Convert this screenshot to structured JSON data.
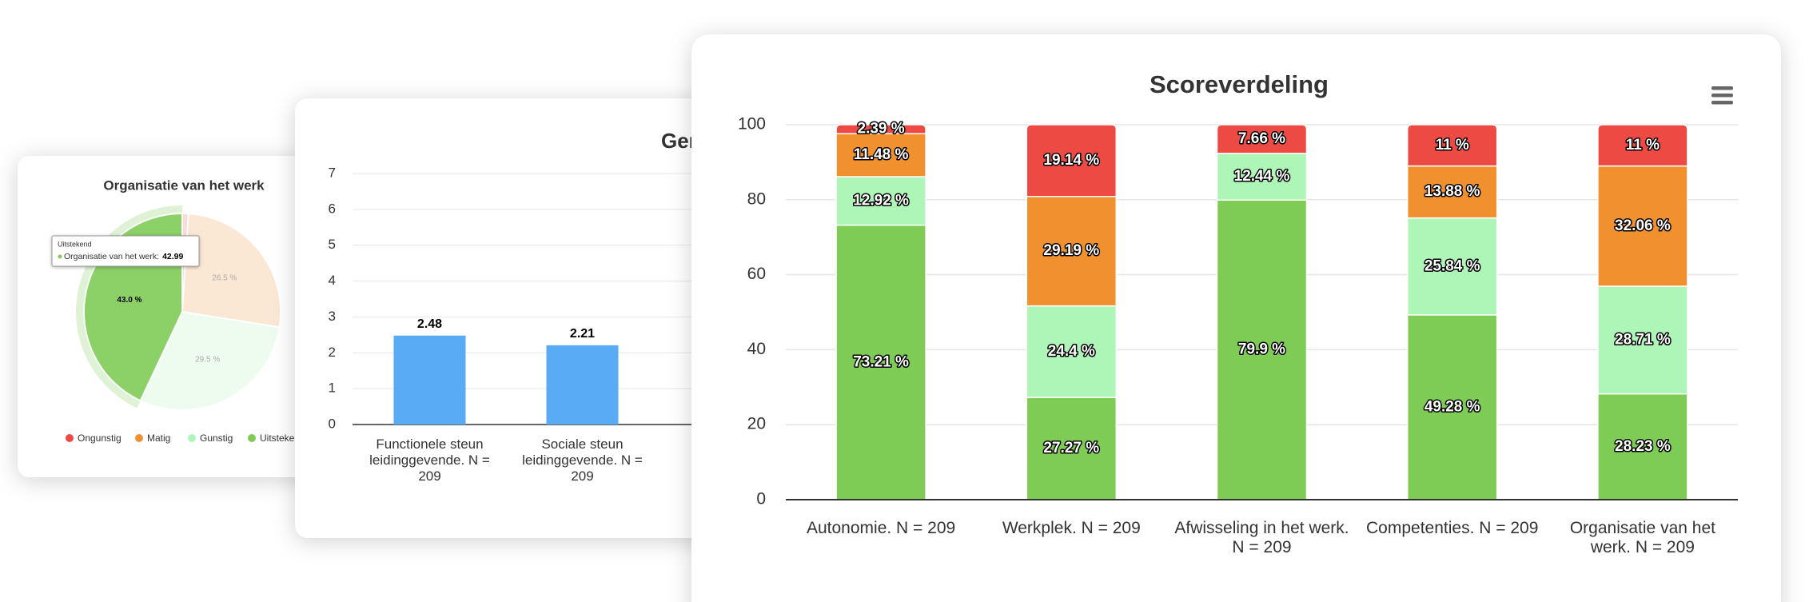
{
  "chart_data": [
    {
      "type": "pie",
      "title": "Organisatie van het werk",
      "categories": [
        "Ongunstig",
        "Matig",
        "Gunstig",
        "Uitstekend"
      ],
      "values": [
        1,
        26.5,
        29.5,
        43.0
      ],
      "value_labels": [
        null,
        "26.5 %",
        "29.5 %",
        "43.0 %"
      ],
      "colors": [
        "#ec4a43",
        "#f0902f",
        "#aef5b8",
        "#7ecb56"
      ],
      "tooltip_title": "Uitstekend",
      "tooltip_label": "Organisatie van het werk:",
      "tooltip_value": 42.99,
      "legend": "bottom"
    },
    {
      "type": "bar",
      "title": "Gem",
      "categories": [
        "Functionele steun leidinggevende. N = 209",
        "Sociale steun leidinggevende. N = 209"
      ],
      "values": [
        2.48,
        2.21
      ],
      "color": "#5aabf5",
      "ylim": [
        0,
        7
      ],
      "yticks": [
        0,
        1,
        2,
        3,
        4,
        5,
        6,
        7
      ],
      "grid": true
    },
    {
      "type": "stacked_bar",
      "title": "Scoreverdeling",
      "categories": [
        "Autonomie. N = 209",
        "Werkplek. N = 209",
        "Afwisseling in het werk. N = 209",
        "Competenties. N = 209",
        "Organisatie van het werk. N = 209"
      ],
      "series": [
        {
          "color": "#7ecb56",
          "values": [
            73.21,
            27.27,
            79.9,
            49.28,
            28.23
          ],
          "value_labels": [
            "73.21 %",
            "27.27 %",
            "79.9 %",
            "49.28 %",
            "28.23 %"
          ]
        },
        {
          "color": "#aef5b8",
          "values": [
            12.92,
            24.4,
            12.44,
            25.84,
            28.71
          ],
          "value_labels": [
            "12.92 %",
            "24.4 %",
            "12.44 %",
            "25.84 %",
            "28.71 %"
          ]
        },
        {
          "color": "#f0902f",
          "values": [
            11.48,
            29.19,
            0,
            13.88,
            32.06
          ],
          "value_labels": [
            "11.48 %",
            "29.19 %",
            null,
            "13.88 %",
            "32.06 %"
          ]
        },
        {
          "color": "#ec4a43",
          "values": [
            2.39,
            19.14,
            7.66,
            11,
            11
          ],
          "value_labels": [
            "2.39 %",
            "19.14 %",
            "7.66 %",
            "11 %",
            "11 %"
          ]
        }
      ],
      "ylim": [
        0,
        100
      ],
      "yticks": [
        0,
        20,
        40,
        60,
        80,
        100
      ],
      "grid": true
    }
  ]
}
